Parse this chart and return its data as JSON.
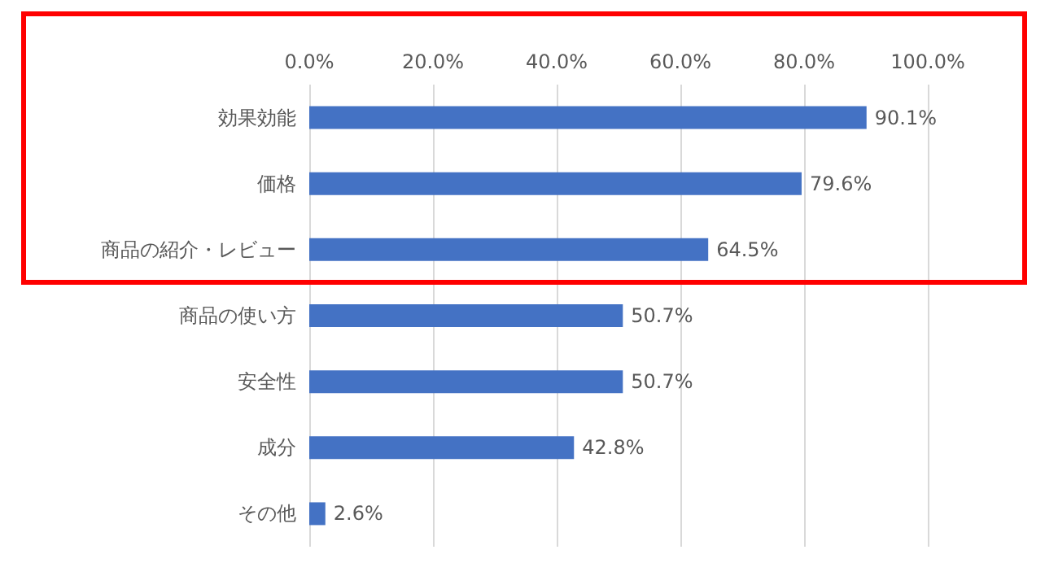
{
  "chart_data": {
    "type": "bar",
    "orientation": "horizontal",
    "categories": [
      "効果効能",
      "価格",
      "商品の紹介・レビュー",
      "商品の使い方",
      "安全性",
      "成分",
      "その他"
    ],
    "values": [
      90.1,
      79.6,
      64.5,
      50.7,
      50.7,
      42.8,
      2.6
    ],
    "value_labels": [
      "90.1%",
      "79.6%",
      "64.5%",
      "50.7%",
      "50.7%",
      "42.8%",
      "2.6%"
    ],
    "color": "#4472c4",
    "xlim": [
      0,
      100
    ],
    "xticks": [
      {
        "value": 0,
        "label": "0.0%"
      },
      {
        "value": 20,
        "label": "20.0%"
      },
      {
        "value": 40,
        "label": "40.0%"
      },
      {
        "value": 60,
        "label": "60.0%"
      },
      {
        "value": 80,
        "label": "80.0%"
      },
      {
        "value": 100,
        "label": "100.0%"
      }
    ],
    "grid": "x"
  }
}
